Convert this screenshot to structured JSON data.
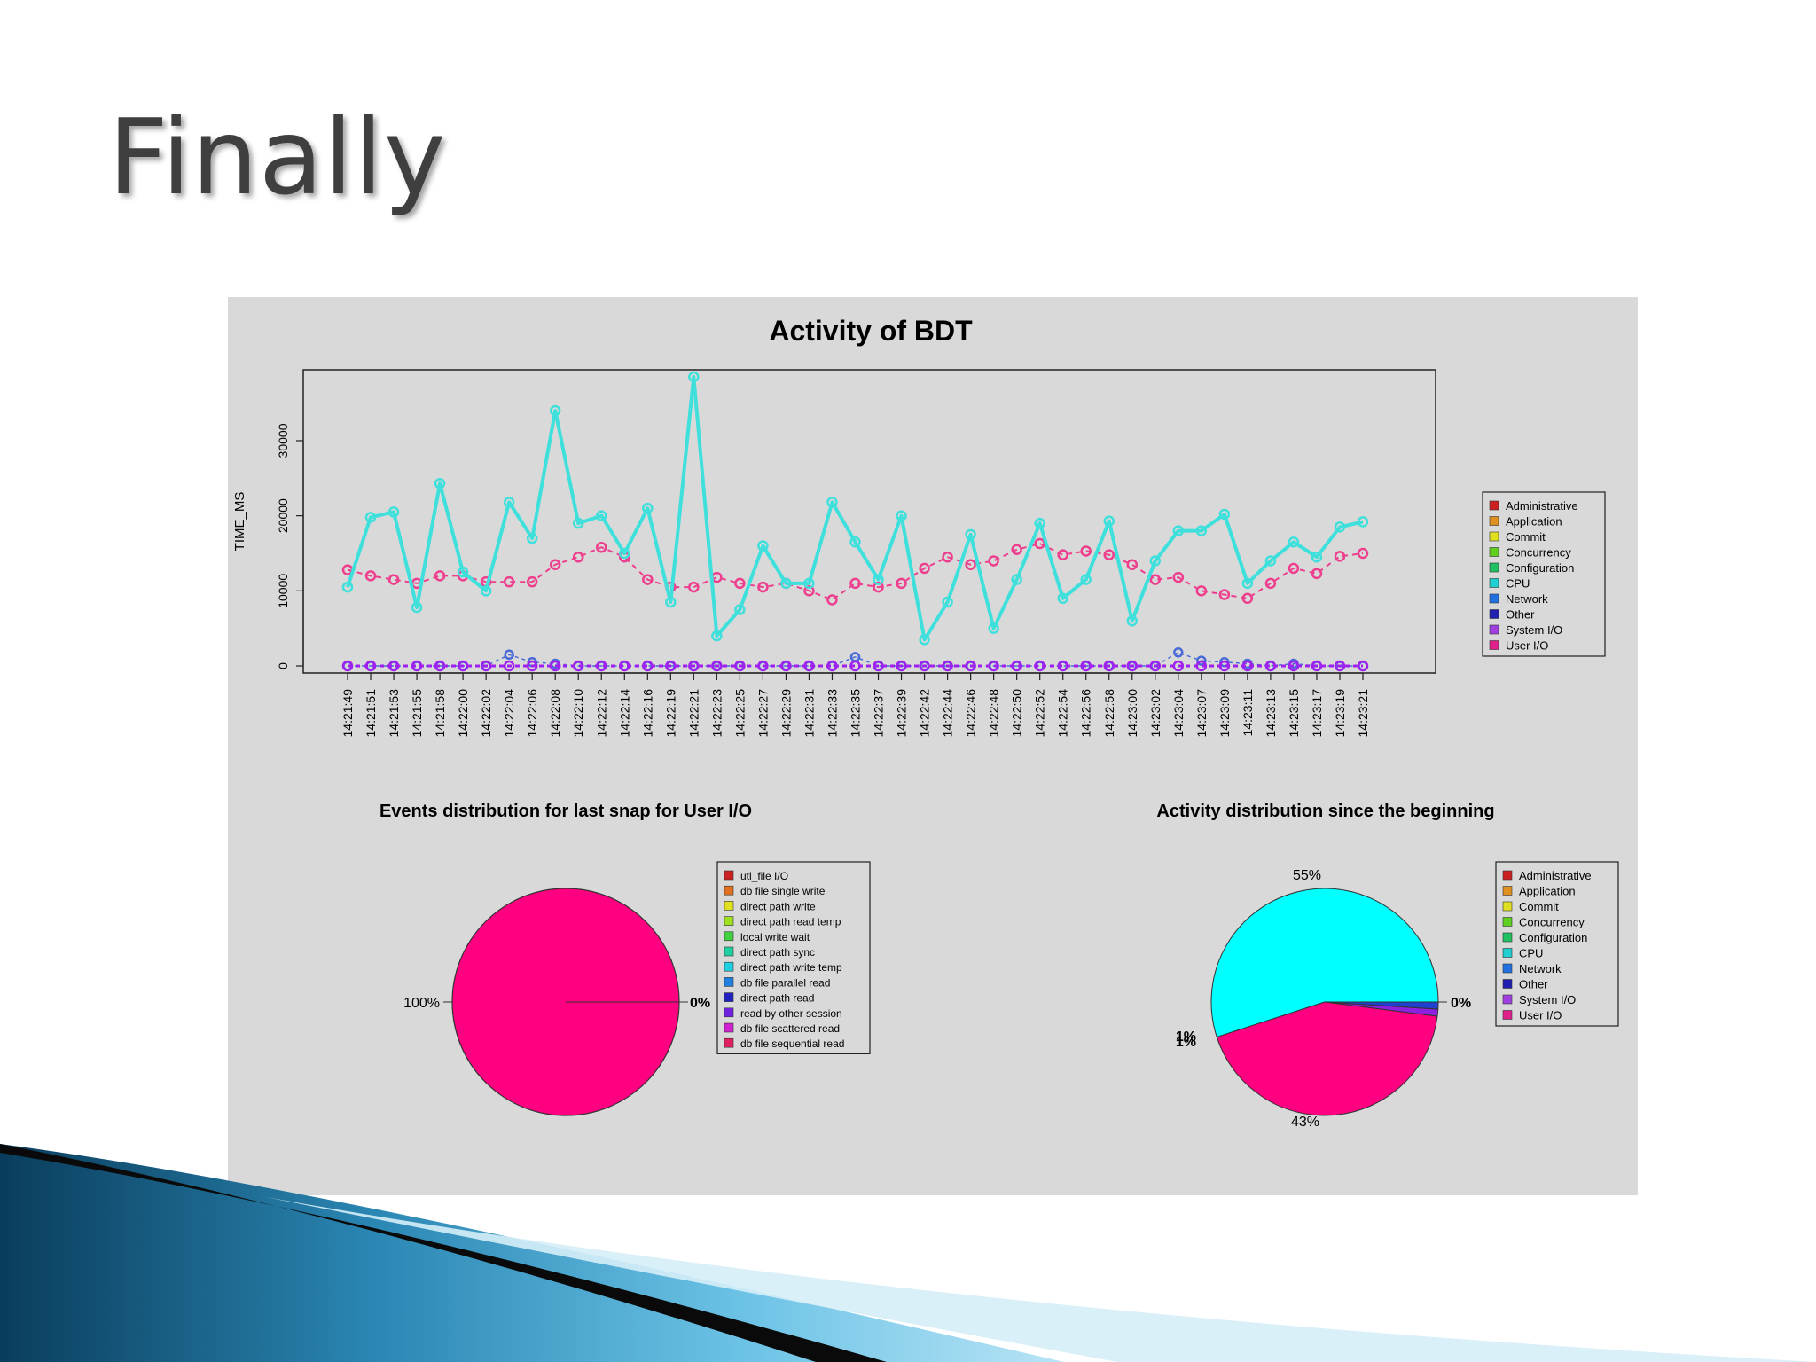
{
  "slide": {
    "title": "Finally"
  },
  "colors": {
    "figure_bg": "#d9d9d9",
    "cpu": "#3fe0dc",
    "user_io": "#ee3f8e",
    "system_io": "#a020f0",
    "network": "#4a6ad8",
    "pie_magenta": "#ff0080",
    "pie_cyan": "#00ffff"
  },
  "chart_data": [
    {
      "type": "line",
      "title": "Activity of BDT",
      "ylabel": "TIME_MS",
      "xlabel": "",
      "ylim": [
        0,
        40000
      ],
      "yticks": [
        "0",
        "10000",
        "20000",
        "30000"
      ],
      "x": [
        "14:21:49",
        "14:21:51",
        "14:21:53",
        "14:21:55",
        "14:21:58",
        "14:22:00",
        "14:22:02",
        "14:22:04",
        "14:22:06",
        "14:22:08",
        "14:22:10",
        "14:22:12",
        "14:22:14",
        "14:22:16",
        "14:22:19",
        "14:22:21",
        "14:22:23",
        "14:22:25",
        "14:22:27",
        "14:22:29",
        "14:22:31",
        "14:22:33",
        "14:22:35",
        "14:22:37",
        "14:22:39",
        "14:22:42",
        "14:22:44",
        "14:22:46",
        "14:22:48",
        "14:22:50",
        "14:22:52",
        "14:22:54",
        "14:22:56",
        "14:22:58",
        "14:23:00",
        "14:23:02",
        "14:23:04",
        "14:23:07",
        "14:23:09",
        "14:23:11",
        "14:23:13",
        "14:23:15",
        "14:23:17",
        "14:23:19",
        "14:23:21"
      ],
      "series": [
        {
          "name": "CPU",
          "values": [
            10500,
            19800,
            20500,
            7800,
            24300,
            12500,
            10000,
            21800,
            17000,
            34000,
            19000,
            20000,
            15000,
            21000,
            8500,
            38500,
            4000,
            7500,
            16000,
            11000,
            11000,
            21800,
            16500,
            11500,
            20000,
            3500,
            8500,
            17500,
            5000,
            11500,
            19000,
            9000,
            11500,
            19300,
            6000,
            14000,
            18000,
            18000,
            20200,
            11000,
            14000,
            16500,
            14500,
            18500,
            19200
          ]
        },
        {
          "name": "User I/O",
          "values": [
            12800,
            12000,
            11500,
            11000,
            12000,
            12000,
            11200,
            11200,
            11200,
            13500,
            14500,
            15800,
            14500,
            11500,
            10500,
            10500,
            11800,
            11000,
            10500,
            11000,
            10000,
            8800,
            11000,
            10500,
            11000,
            13000,
            14500,
            13500,
            14000,
            15500,
            16300,
            14800,
            15300,
            14800,
            13500,
            11500,
            11800,
            10000,
            9500,
            9000,
            11000,
            13000,
            12300,
            14600,
            15000
          ]
        },
        {
          "name": "System I/O",
          "values": [
            0,
            0,
            0,
            0,
            0,
            0,
            0,
            0,
            0,
            0,
            0,
            0,
            0,
            0,
            0,
            0,
            0,
            0,
            0,
            0,
            0,
            0,
            0,
            0,
            0,
            0,
            0,
            0,
            0,
            0,
            0,
            0,
            0,
            0,
            0,
            0,
            0,
            0,
            0,
            0,
            0,
            0,
            0,
            0,
            0
          ]
        },
        {
          "name": "Network",
          "values": [
            0,
            0,
            0,
            0,
            0,
            0,
            0,
            1500,
            500,
            300,
            0,
            0,
            0,
            0,
            0,
            0,
            0,
            0,
            0,
            0,
            0,
            0,
            1200,
            0,
            0,
            0,
            0,
            0,
            0,
            0,
            0,
            0,
            0,
            0,
            0,
            0,
            1800,
            700,
            500,
            300,
            0,
            300,
            0,
            0,
            0
          ]
        }
      ],
      "legend_position": "right",
      "legend": [
        "Administrative",
        "Application",
        "Commit",
        "Concurrency",
        "Configuration",
        "CPU",
        "Network",
        "Other",
        "System I/O",
        "User I/O"
      ],
      "legend_colors": [
        "#cc2020",
        "#e09020",
        "#e0e020",
        "#60d020",
        "#20c060",
        "#20d0d0",
        "#2070e0",
        "#2020b0",
        "#a040e0",
        "#e0208a"
      ]
    },
    {
      "type": "pie",
      "title": "Events distribution for last snap for User I/O",
      "slices": [
        {
          "label": "100%",
          "value": 100,
          "color": "#ff0080"
        },
        {
          "label": "0%",
          "value": 0
        }
      ],
      "legend": [
        "utl_file I/O",
        "db file single write",
        "direct path write",
        "direct path read temp",
        "local write wait",
        "direct path sync",
        "direct path write temp",
        "db file parallel read",
        "direct path read",
        "read by other session",
        "db file scattered read",
        "db file sequential read"
      ],
      "legend_colors": [
        "#cc2020",
        "#e07020",
        "#e0e020",
        "#a0e020",
        "#40d040",
        "#20d0a0",
        "#20d0e0",
        "#2080e0",
        "#2020c0",
        "#7020e0",
        "#d020d0",
        "#e02060"
      ]
    },
    {
      "type": "pie",
      "title": "Activity distribution since the beginning",
      "slices": [
        {
          "label": "55%",
          "value": 55,
          "color": "#00ffff"
        },
        {
          "label": "43%",
          "value": 43,
          "color": "#ff0080"
        },
        {
          "label": "1%",
          "value": 1,
          "color": "#9020e0"
        },
        {
          "label": "1%",
          "value": 1,
          "color": "#2040d0"
        },
        {
          "label": "0%",
          "value": 0
        }
      ],
      "legend": [
        "Administrative",
        "Application",
        "Commit",
        "Concurrency",
        "Configuration",
        "CPU",
        "Network",
        "Other",
        "System I/O",
        "User I/O"
      ],
      "legend_colors": [
        "#cc2020",
        "#e09020",
        "#e0e020",
        "#60d020",
        "#20c060",
        "#20d0d0",
        "#2070e0",
        "#2020b0",
        "#a040e0",
        "#e0208a"
      ]
    }
  ]
}
